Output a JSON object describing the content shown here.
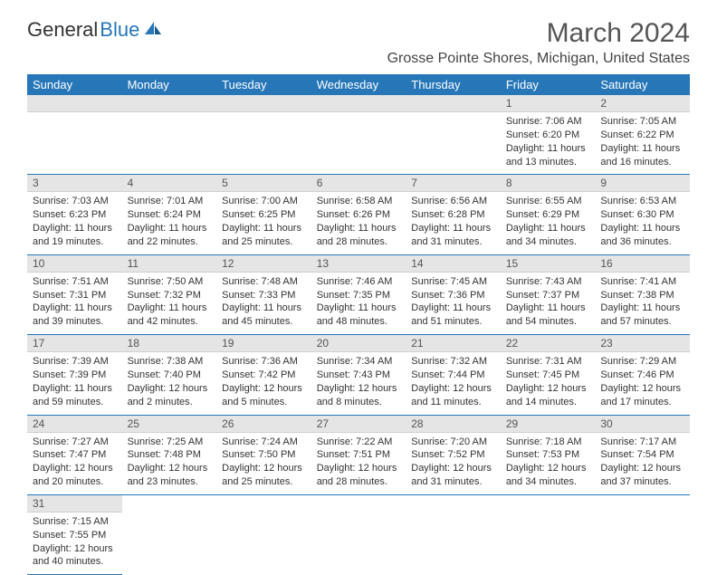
{
  "logo": {
    "part1": "General",
    "part2": "Blue"
  },
  "title": "March 2024",
  "location": "Grosse Pointe Shores, Michigan, United States",
  "colors": {
    "header_bg": "#2777b8",
    "header_text": "#ffffff",
    "daynum_bg": "#e5e5e5",
    "row_border": "#2777b8",
    "body_bg": "#ffffff",
    "text": "#333333"
  },
  "day_headers": [
    "Sunday",
    "Monday",
    "Tuesday",
    "Wednesday",
    "Thursday",
    "Friday",
    "Saturday"
  ],
  "weeks": [
    [
      {
        "n": "",
        "sr": "",
        "ss": "",
        "dl": ""
      },
      {
        "n": "",
        "sr": "",
        "ss": "",
        "dl": ""
      },
      {
        "n": "",
        "sr": "",
        "ss": "",
        "dl": ""
      },
      {
        "n": "",
        "sr": "",
        "ss": "",
        "dl": ""
      },
      {
        "n": "",
        "sr": "",
        "ss": "",
        "dl": ""
      },
      {
        "n": "1",
        "sr": "Sunrise: 7:06 AM",
        "ss": "Sunset: 6:20 PM",
        "dl": "Daylight: 11 hours and 13 minutes."
      },
      {
        "n": "2",
        "sr": "Sunrise: 7:05 AM",
        "ss": "Sunset: 6:22 PM",
        "dl": "Daylight: 11 hours and 16 minutes."
      }
    ],
    [
      {
        "n": "3",
        "sr": "Sunrise: 7:03 AM",
        "ss": "Sunset: 6:23 PM",
        "dl": "Daylight: 11 hours and 19 minutes."
      },
      {
        "n": "4",
        "sr": "Sunrise: 7:01 AM",
        "ss": "Sunset: 6:24 PM",
        "dl": "Daylight: 11 hours and 22 minutes."
      },
      {
        "n": "5",
        "sr": "Sunrise: 7:00 AM",
        "ss": "Sunset: 6:25 PM",
        "dl": "Daylight: 11 hours and 25 minutes."
      },
      {
        "n": "6",
        "sr": "Sunrise: 6:58 AM",
        "ss": "Sunset: 6:26 PM",
        "dl": "Daylight: 11 hours and 28 minutes."
      },
      {
        "n": "7",
        "sr": "Sunrise: 6:56 AM",
        "ss": "Sunset: 6:28 PM",
        "dl": "Daylight: 11 hours and 31 minutes."
      },
      {
        "n": "8",
        "sr": "Sunrise: 6:55 AM",
        "ss": "Sunset: 6:29 PM",
        "dl": "Daylight: 11 hours and 34 minutes."
      },
      {
        "n": "9",
        "sr": "Sunrise: 6:53 AM",
        "ss": "Sunset: 6:30 PM",
        "dl": "Daylight: 11 hours and 36 minutes."
      }
    ],
    [
      {
        "n": "10",
        "sr": "Sunrise: 7:51 AM",
        "ss": "Sunset: 7:31 PM",
        "dl": "Daylight: 11 hours and 39 minutes."
      },
      {
        "n": "11",
        "sr": "Sunrise: 7:50 AM",
        "ss": "Sunset: 7:32 PM",
        "dl": "Daylight: 11 hours and 42 minutes."
      },
      {
        "n": "12",
        "sr": "Sunrise: 7:48 AM",
        "ss": "Sunset: 7:33 PM",
        "dl": "Daylight: 11 hours and 45 minutes."
      },
      {
        "n": "13",
        "sr": "Sunrise: 7:46 AM",
        "ss": "Sunset: 7:35 PM",
        "dl": "Daylight: 11 hours and 48 minutes."
      },
      {
        "n": "14",
        "sr": "Sunrise: 7:45 AM",
        "ss": "Sunset: 7:36 PM",
        "dl": "Daylight: 11 hours and 51 minutes."
      },
      {
        "n": "15",
        "sr": "Sunrise: 7:43 AM",
        "ss": "Sunset: 7:37 PM",
        "dl": "Daylight: 11 hours and 54 minutes."
      },
      {
        "n": "16",
        "sr": "Sunrise: 7:41 AM",
        "ss": "Sunset: 7:38 PM",
        "dl": "Daylight: 11 hours and 57 minutes."
      }
    ],
    [
      {
        "n": "17",
        "sr": "Sunrise: 7:39 AM",
        "ss": "Sunset: 7:39 PM",
        "dl": "Daylight: 11 hours and 59 minutes."
      },
      {
        "n": "18",
        "sr": "Sunrise: 7:38 AM",
        "ss": "Sunset: 7:40 PM",
        "dl": "Daylight: 12 hours and 2 minutes."
      },
      {
        "n": "19",
        "sr": "Sunrise: 7:36 AM",
        "ss": "Sunset: 7:42 PM",
        "dl": "Daylight: 12 hours and 5 minutes."
      },
      {
        "n": "20",
        "sr": "Sunrise: 7:34 AM",
        "ss": "Sunset: 7:43 PM",
        "dl": "Daylight: 12 hours and 8 minutes."
      },
      {
        "n": "21",
        "sr": "Sunrise: 7:32 AM",
        "ss": "Sunset: 7:44 PM",
        "dl": "Daylight: 12 hours and 11 minutes."
      },
      {
        "n": "22",
        "sr": "Sunrise: 7:31 AM",
        "ss": "Sunset: 7:45 PM",
        "dl": "Daylight: 12 hours and 14 minutes."
      },
      {
        "n": "23",
        "sr": "Sunrise: 7:29 AM",
        "ss": "Sunset: 7:46 PM",
        "dl": "Daylight: 12 hours and 17 minutes."
      }
    ],
    [
      {
        "n": "24",
        "sr": "Sunrise: 7:27 AM",
        "ss": "Sunset: 7:47 PM",
        "dl": "Daylight: 12 hours and 20 minutes."
      },
      {
        "n": "25",
        "sr": "Sunrise: 7:25 AM",
        "ss": "Sunset: 7:48 PM",
        "dl": "Daylight: 12 hours and 23 minutes."
      },
      {
        "n": "26",
        "sr": "Sunrise: 7:24 AM",
        "ss": "Sunset: 7:50 PM",
        "dl": "Daylight: 12 hours and 25 minutes."
      },
      {
        "n": "27",
        "sr": "Sunrise: 7:22 AM",
        "ss": "Sunset: 7:51 PM",
        "dl": "Daylight: 12 hours and 28 minutes."
      },
      {
        "n": "28",
        "sr": "Sunrise: 7:20 AM",
        "ss": "Sunset: 7:52 PM",
        "dl": "Daylight: 12 hours and 31 minutes."
      },
      {
        "n": "29",
        "sr": "Sunrise: 7:18 AM",
        "ss": "Sunset: 7:53 PM",
        "dl": "Daylight: 12 hours and 34 minutes."
      },
      {
        "n": "30",
        "sr": "Sunrise: 7:17 AM",
        "ss": "Sunset: 7:54 PM",
        "dl": "Daylight: 12 hours and 37 minutes."
      }
    ],
    [
      {
        "n": "31",
        "sr": "Sunrise: 7:15 AM",
        "ss": "Sunset: 7:55 PM",
        "dl": "Daylight: 12 hours and 40 minutes."
      },
      {
        "n": "",
        "sr": "",
        "ss": "",
        "dl": ""
      },
      {
        "n": "",
        "sr": "",
        "ss": "",
        "dl": ""
      },
      {
        "n": "",
        "sr": "",
        "ss": "",
        "dl": ""
      },
      {
        "n": "",
        "sr": "",
        "ss": "",
        "dl": ""
      },
      {
        "n": "",
        "sr": "",
        "ss": "",
        "dl": ""
      },
      {
        "n": "",
        "sr": "",
        "ss": "",
        "dl": ""
      }
    ]
  ]
}
